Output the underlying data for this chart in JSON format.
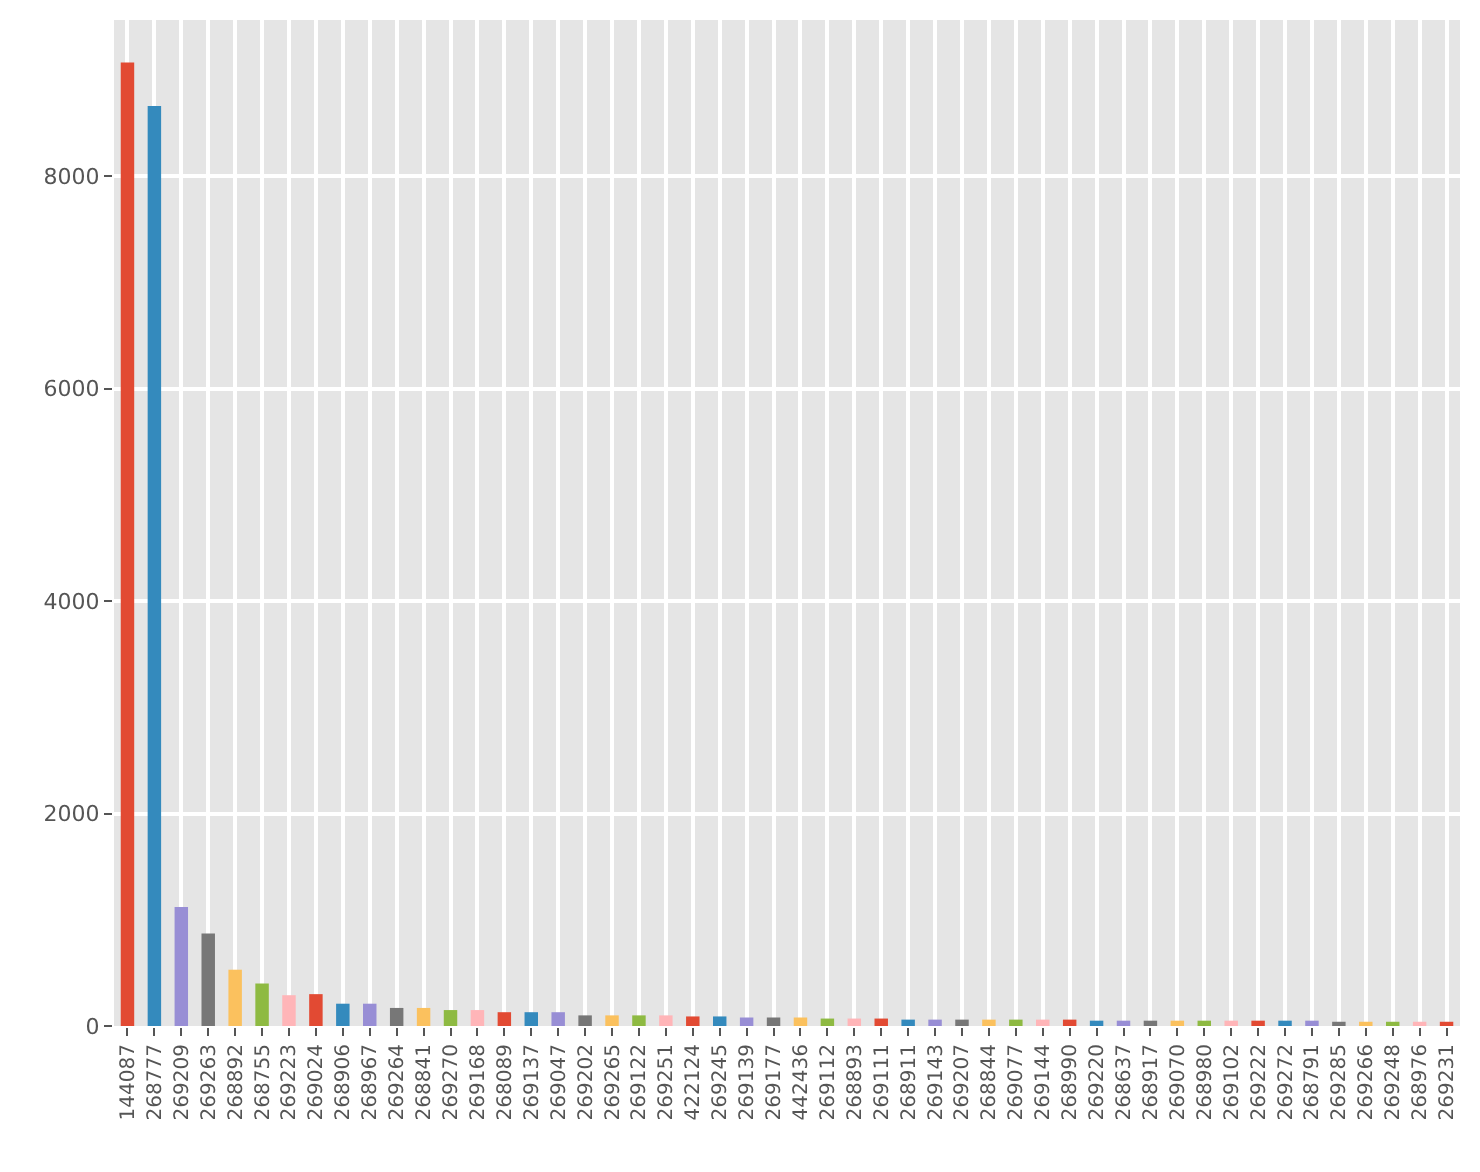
{
  "chart_data": {
    "type": "bar",
    "categories": [
      "144087",
      "268777",
      "269209",
      "269263",
      "268892",
      "268755",
      "269223",
      "269024",
      "268906",
      "268967",
      "269264",
      "268841",
      "269270",
      "269168",
      "268089",
      "269137",
      "269047",
      "269202",
      "269265",
      "269122",
      "269251",
      "422124",
      "269245",
      "269139",
      "269177",
      "442436",
      "269112",
      "268893",
      "269111",
      "268911",
      "269143",
      "269207",
      "268844",
      "269077",
      "269144",
      "268990",
      "269220",
      "268637",
      "268917",
      "269070",
      "268980",
      "269102",
      "269222",
      "269272",
      "268791",
      "269285",
      "269266",
      "269248",
      "268976",
      "269231"
    ],
    "values": [
      9070,
      8660,
      1120,
      870,
      530,
      400,
      290,
      300,
      210,
      210,
      170,
      170,
      150,
      150,
      130,
      130,
      130,
      100,
      100,
      100,
      100,
      90,
      90,
      80,
      80,
      80,
      70,
      70,
      70,
      60,
      60,
      60,
      60,
      60,
      60,
      60,
      50,
      50,
      50,
      50,
      50,
      50,
      50,
      50,
      50,
      40,
      40,
      40,
      40,
      40
    ],
    "colors": [
      "#e24a33",
      "#348abd",
      "#988ed5",
      "#777777",
      "#fbc15e",
      "#8eba42",
      "#ffb5b8",
      "#e24a33",
      "#348abd",
      "#988ed5",
      "#777777",
      "#fbc15e",
      "#8eba42",
      "#ffb5b8",
      "#e24a33",
      "#348abd",
      "#988ed5",
      "#777777",
      "#fbc15e",
      "#8eba42",
      "#ffb5b8",
      "#e24a33",
      "#348abd",
      "#988ed5",
      "#777777",
      "#fbc15e",
      "#8eba42",
      "#ffb5b8",
      "#e24a33",
      "#348abd",
      "#988ed5",
      "#777777",
      "#fbc15e",
      "#8eba42",
      "#ffb5b8",
      "#e24a33",
      "#348abd",
      "#988ed5",
      "#777777",
      "#fbc15e",
      "#8eba42",
      "#ffb5b8",
      "#e24a33",
      "#348abd",
      "#988ed5",
      "#777777",
      "#fbc15e",
      "#8eba42",
      "#ffb5b8",
      "#e24a33"
    ],
    "ylim": [
      0,
      9470
    ],
    "yticks": [
      0,
      2000,
      4000,
      6000,
      8000
    ],
    "grid": true
  }
}
